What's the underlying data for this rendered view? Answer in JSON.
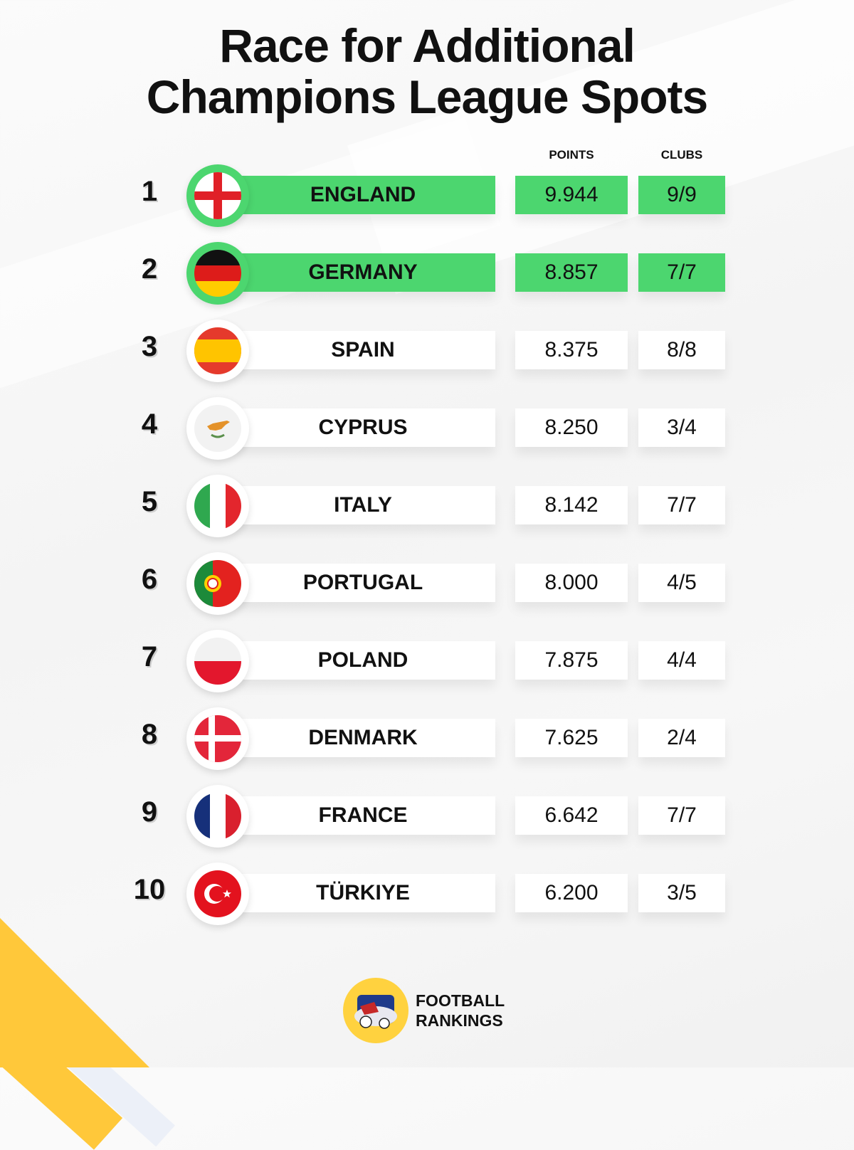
{
  "title": {
    "line1": "Race for Additional",
    "line2": "Champions League Spots"
  },
  "headers": {
    "points": "POINTS",
    "clubs": "CLUBS"
  },
  "rows": [
    {
      "rank": "1",
      "country": "ENGLAND",
      "points": "9.944",
      "clubs": "9/9",
      "highlighted": true,
      "flag": "england-flag-icon"
    },
    {
      "rank": "2",
      "country": "GERMANY",
      "points": "8.857",
      "clubs": "7/7",
      "highlighted": true,
      "flag": "germany-flag-icon"
    },
    {
      "rank": "3",
      "country": "SPAIN",
      "points": "8.375",
      "clubs": "8/8",
      "highlighted": false,
      "flag": "spain-flag-icon"
    },
    {
      "rank": "4",
      "country": "CYPRUS",
      "points": "8.250",
      "clubs": "3/4",
      "highlighted": false,
      "flag": "cyprus-flag-icon"
    },
    {
      "rank": "5",
      "country": "ITALY",
      "points": "8.142",
      "clubs": "7/7",
      "highlighted": false,
      "flag": "italy-flag-icon"
    },
    {
      "rank": "6",
      "country": "PORTUGAL",
      "points": "8.000",
      "clubs": "4/5",
      "highlighted": false,
      "flag": "portugal-flag-icon"
    },
    {
      "rank": "7",
      "country": "POLAND",
      "points": "7.875",
      "clubs": "4/4",
      "highlighted": false,
      "flag": "poland-flag-icon"
    },
    {
      "rank": "8",
      "country": "DENMARK",
      "points": "7.625",
      "clubs": "2/4",
      "highlighted": false,
      "flag": "denmark-flag-icon"
    },
    {
      "rank": "9",
      "country": "FRANCE",
      "points": "6.642",
      "clubs": "7/7",
      "highlighted": false,
      "flag": "france-flag-icon"
    },
    {
      "rank": "10",
      "country": "TÜRKIYE",
      "points": "6.200",
      "clubs": "3/5",
      "highlighted": false,
      "flag": "turkiye-flag-icon"
    }
  ],
  "brand": {
    "line1": "FOOTBALL",
    "line2": "RANKINGS"
  },
  "colors": {
    "highlight": "#4cd66f",
    "accent": "#ffc83a"
  }
}
